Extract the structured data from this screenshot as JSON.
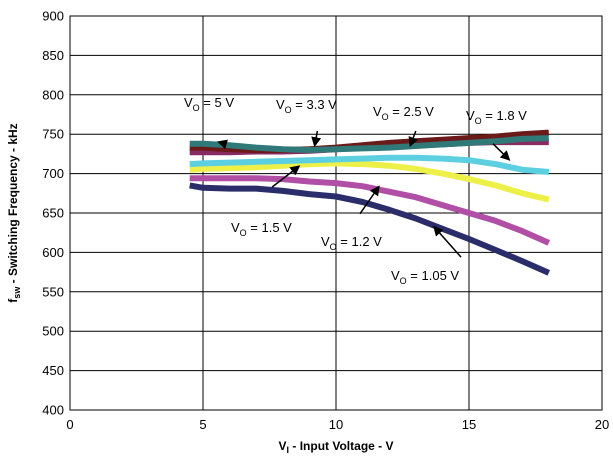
{
  "chart_data": {
    "type": "line",
    "xlabel": {
      "main": "V",
      "sub": "I",
      "rest": " - Input Voltage - V"
    },
    "ylabel": {
      "main": "f",
      "sub": "sw",
      "rest": " - Switching Frequency - kHz"
    },
    "xlim": [
      0,
      20
    ],
    "ylim": [
      400,
      900
    ],
    "xticks": [
      0,
      5,
      10,
      15,
      20
    ],
    "yticks": [
      400,
      450,
      500,
      550,
      600,
      650,
      700,
      750,
      800,
      850,
      900
    ],
    "grid": true,
    "series": [
      {
        "name": "VO = 1.05 V",
        "color": "#2b2d6b",
        "points": [
          [
            4.5,
            685
          ],
          [
            5,
            682
          ],
          [
            6,
            681
          ],
          [
            7,
            681
          ],
          [
            8,
            678
          ],
          [
            9,
            674
          ],
          [
            10,
            671
          ],
          [
            11,
            664
          ],
          [
            12,
            654
          ],
          [
            13,
            643
          ],
          [
            14,
            630
          ],
          [
            15,
            617
          ],
          [
            16,
            603
          ],
          [
            17,
            589
          ],
          [
            18,
            574
          ]
        ]
      },
      {
        "name": "VO = 1.2 V",
        "color": "#b14fa6",
        "points": [
          [
            4.5,
            694
          ],
          [
            5,
            694
          ],
          [
            6,
            694
          ],
          [
            7,
            694
          ],
          [
            8,
            693
          ],
          [
            9,
            690
          ],
          [
            10,
            688
          ],
          [
            11,
            684
          ],
          [
            12,
            677
          ],
          [
            13,
            670
          ],
          [
            14,
            660
          ],
          [
            15,
            650
          ],
          [
            16,
            640
          ],
          [
            17,
            627
          ],
          [
            18,
            612
          ]
        ]
      },
      {
        "name": "VO = 1.5 V",
        "color": "#eef04a",
        "points": [
          [
            4.5,
            705
          ],
          [
            5,
            706
          ],
          [
            6,
            707
          ],
          [
            7,
            708
          ],
          [
            8,
            710
          ],
          [
            9,
            712
          ],
          [
            10,
            713
          ],
          [
            11,
            712
          ],
          [
            12,
            710
          ],
          [
            13,
            706
          ],
          [
            14,
            700
          ],
          [
            15,
            693
          ],
          [
            16,
            685
          ],
          [
            17,
            675
          ],
          [
            18,
            667
          ]
        ]
      },
      {
        "name": "VO = 1.8 V",
        "color": "#5ccfe0",
        "points": [
          [
            4.5,
            712
          ],
          [
            5,
            713
          ],
          [
            6,
            714
          ],
          [
            7,
            715
          ],
          [
            8,
            716
          ],
          [
            9,
            717
          ],
          [
            10,
            718
          ],
          [
            11,
            719
          ],
          [
            12,
            720
          ],
          [
            13,
            720
          ],
          [
            14,
            719
          ],
          [
            15,
            717
          ],
          [
            16,
            712
          ],
          [
            17,
            705
          ],
          [
            18,
            702
          ]
        ]
      },
      {
        "name": "VO = 2.5 V",
        "color": "#8a2a63",
        "points": [
          [
            4.5,
            727
          ],
          [
            5,
            727
          ],
          [
            6,
            727
          ],
          [
            7,
            728
          ],
          [
            8,
            728
          ],
          [
            9,
            729
          ],
          [
            10,
            731
          ],
          [
            11,
            733
          ],
          [
            12,
            734
          ],
          [
            13,
            736
          ],
          [
            14,
            737
          ],
          [
            15,
            739
          ],
          [
            16,
            740
          ],
          [
            17,
            740
          ],
          [
            18,
            740
          ]
        ]
      },
      {
        "name": "VO = 3.3 V",
        "color": "#6b1a1a",
        "points": [
          [
            4.5,
            733
          ],
          [
            5,
            733
          ],
          [
            6,
            731
          ],
          [
            7,
            730
          ],
          [
            8,
            730
          ],
          [
            9,
            731
          ],
          [
            10,
            733
          ],
          [
            11,
            736
          ],
          [
            12,
            739
          ],
          [
            13,
            741
          ],
          [
            14,
            743
          ],
          [
            15,
            745
          ],
          [
            16,
            747
          ],
          [
            17,
            750
          ],
          [
            18,
            752
          ]
        ]
      },
      {
        "name": "VO = 5 V",
        "color": "#2f7a78",
        "points": [
          [
            4.5,
            738
          ],
          [
            5,
            738
          ],
          [
            6,
            736
          ],
          [
            7,
            733
          ],
          [
            8,
            731
          ],
          [
            9,
            730
          ],
          [
            10,
            731
          ],
          [
            11,
            732
          ],
          [
            12,
            733
          ],
          [
            13,
            735
          ],
          [
            14,
            737
          ],
          [
            15,
            739
          ],
          [
            16,
            741
          ],
          [
            17,
            744
          ],
          [
            18,
            745
          ]
        ]
      }
    ],
    "annotations": [
      {
        "main": "V",
        "sub": "O",
        "rest": " = 5 V",
        "arrow_from": [
          5.8,
          738
        ],
        "arrow_to": [
          5.6,
          740
        ]
      },
      {
        "main": "V",
        "sub": "O",
        "rest": " = 3.3 V",
        "arrow_from": [
          9.3,
          754
        ],
        "arrow_to": [
          9.2,
          736
        ]
      },
      {
        "main": "V",
        "sub": "O",
        "rest": " = 2.5 V",
        "arrow_from": [
          13.0,
          754
        ],
        "arrow_to": [
          12.8,
          736
        ]
      },
      {
        "main": "V",
        "sub": "O",
        "rest": " = 1.8 V",
        "arrow_from": [
          15.9,
          738
        ],
        "arrow_to": [
          16.5,
          718
        ]
      },
      {
        "main": "V",
        "sub": "O",
        "rest": " = 1.5 V",
        "arrow_from": [
          7.6,
          683
        ],
        "arrow_to": [
          8.6,
          709
        ]
      },
      {
        "main": "V",
        "sub": "O",
        "rest": " = 1.2 V",
        "arrow_from": [
          10.9,
          649
        ],
        "arrow_to": [
          11.6,
          683
        ]
      },
      {
        "main": "V",
        "sub": "O",
        "rest": " = 1.05 V",
        "arrow_from": [
          14.7,
          594
        ],
        "arrow_to": [
          13.7,
          632
        ]
      }
    ]
  }
}
